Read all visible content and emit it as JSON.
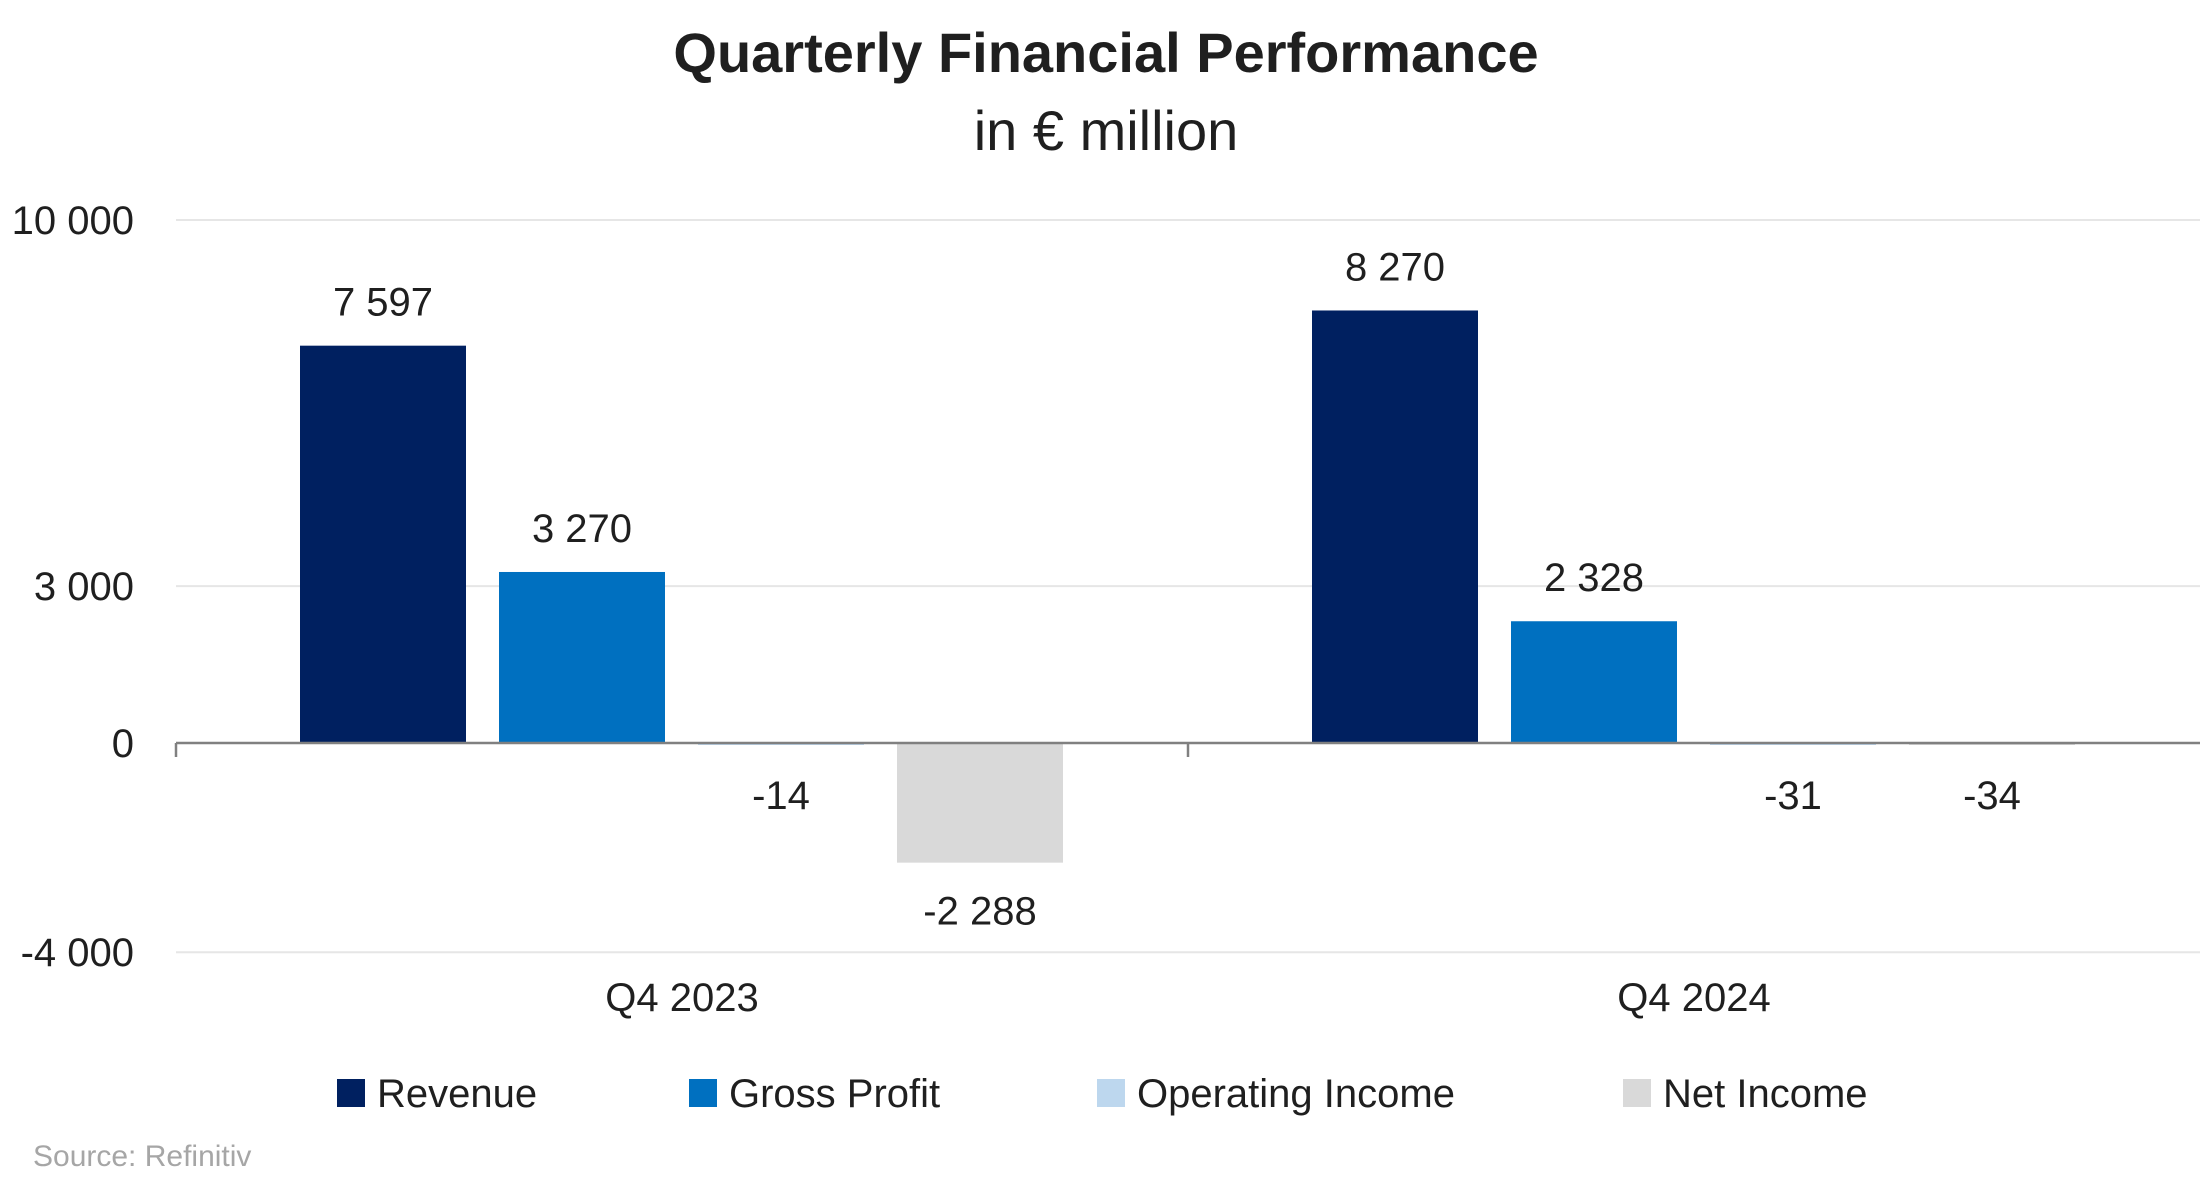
{
  "chart_data": {
    "type": "bar",
    "title": "Quarterly Financial Performance",
    "subtitle": "in € million",
    "categories": [
      "Q4 2023",
      "Q4 2024"
    ],
    "series": [
      {
        "name": "Revenue",
        "values": [
          7597,
          8270
        ],
        "labels": [
          "7 597",
          "8 270"
        ],
        "color": "#002060"
      },
      {
        "name": "Gross Profit",
        "values": [
          3270,
          2328
        ],
        "labels": [
          "3 270",
          "2 328"
        ],
        "color": "#0070C0"
      },
      {
        "name": "Operating Income",
        "values": [
          -14,
          -31
        ],
        "labels": [
          "-14",
          "-31"
        ],
        "color": "#BDD7EE"
      },
      {
        "name": "Net Income",
        "values": [
          -2288,
          -34
        ],
        "labels": [
          "-2 288",
          "-34"
        ],
        "color": "#D9D9D9"
      }
    ],
    "yticks": [
      {
        "value": 10000,
        "label": "10 000"
      },
      {
        "value": 3000,
        "label": "3 000"
      },
      {
        "value": 0,
        "label": "0"
      },
      {
        "value": -4000,
        "label": "-4 000"
      }
    ],
    "ylim": [
      -4000,
      10000
    ],
    "ylabel": "",
    "xlabel": "",
    "grid": true,
    "legend_position": "bottom",
    "source": "Source: Refinitiv"
  }
}
